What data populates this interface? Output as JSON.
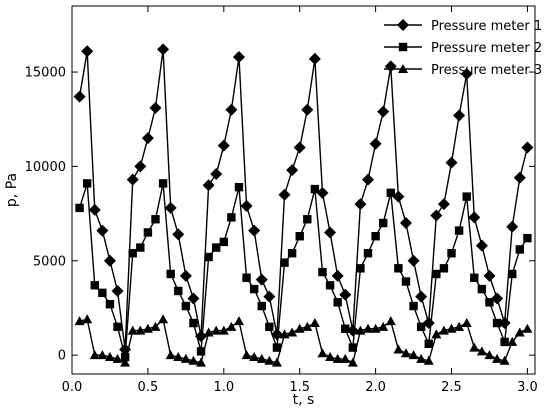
{
  "chart_data": {
    "type": "line",
    "xlabel": "t, s",
    "ylabel": "p, Pa",
    "xlim": [
      0.0,
      3.05
    ],
    "ylim": [
      -1000,
      18500
    ],
    "xticks": [
      0.0,
      0.5,
      1.0,
      1.5,
      2.0,
      2.5,
      3.0
    ],
    "xtick_labels": [
      "0.0",
      "0.5",
      "1.0",
      "1.5",
      "2.0",
      "2.5",
      "3.0"
    ],
    "yticks": [
      0,
      5000,
      10000,
      15000
    ],
    "ytick_labels": [
      "0",
      "5000",
      "10000",
      "15000"
    ],
    "grid": false,
    "legend_position": "top-right",
    "series": [
      {
        "name": "Pressure meter 1",
        "marker": "diamond",
        "color": "#000000",
        "x": [
          0.05,
          0.1,
          0.15,
          0.2,
          0.25,
          0.3,
          0.35,
          0.4,
          0.45,
          0.5,
          0.55,
          0.6,
          0.65,
          0.7,
          0.75,
          0.8,
          0.85,
          0.9,
          0.95,
          1.0,
          1.05,
          1.1,
          1.15,
          1.2,
          1.25,
          1.3,
          1.35,
          1.4,
          1.45,
          1.5,
          1.55,
          1.6,
          1.65,
          1.7,
          1.75,
          1.8,
          1.85,
          1.9,
          1.95,
          2.0,
          2.05,
          2.1,
          2.15,
          2.2,
          2.25,
          2.3,
          2.35,
          2.4,
          2.45,
          2.5,
          2.55,
          2.6,
          2.65,
          2.7,
          2.75,
          2.8,
          2.85,
          2.9,
          2.95,
          3.0
        ],
        "y": [
          13700,
          16100,
          7700,
          6600,
          5000,
          3400,
          300,
          9300,
          10000,
          11500,
          13100,
          16200,
          7800,
          6400,
          4200,
          3000,
          1000,
          9000,
          9600,
          11100,
          13000,
          15800,
          7900,
          6600,
          4000,
          3100,
          1100,
          8500,
          9800,
          11000,
          13000,
          15700,
          8600,
          6500,
          4200,
          3200,
          1300,
          8000,
          9300,
          11200,
          12900,
          15300,
          8400,
          7000,
          5000,
          3100,
          1700,
          7400,
          8000,
          10200,
          12700,
          14900,
          7300,
          5800,
          4200,
          3000,
          1700,
          6800,
          9400,
          11000
        ]
      },
      {
        "name": "Pressure meter 2",
        "marker": "square",
        "color": "#000000",
        "x": [
          0.05,
          0.1,
          0.15,
          0.2,
          0.25,
          0.3,
          0.35,
          0.4,
          0.45,
          0.5,
          0.55,
          0.6,
          0.65,
          0.7,
          0.75,
          0.8,
          0.85,
          0.9,
          0.95,
          1.0,
          1.05,
          1.1,
          1.15,
          1.2,
          1.25,
          1.3,
          1.35,
          1.4,
          1.45,
          1.5,
          1.55,
          1.6,
          1.65,
          1.7,
          1.75,
          1.8,
          1.85,
          1.9,
          1.95,
          2.0,
          2.05,
          2.1,
          2.15,
          2.2,
          2.25,
          2.3,
          2.35,
          2.4,
          2.45,
          2.5,
          2.55,
          2.6,
          2.65,
          2.7,
          2.75,
          2.8,
          2.85,
          2.9,
          2.95,
          3.0
        ],
        "y": [
          7800,
          9100,
          3700,
          3300,
          2700,
          1500,
          -100,
          5400,
          5700,
          6500,
          7200,
          9100,
          4300,
          3400,
          2600,
          1700,
          200,
          5200,
          5700,
          6000,
          7300,
          8900,
          4100,
          3500,
          2600,
          1500,
          400,
          4900,
          5400,
          6300,
          7200,
          8800,
          4400,
          3700,
          2800,
          1400,
          400,
          4600,
          5400,
          6300,
          7000,
          8600,
          4600,
          3900,
          2600,
          1500,
          600,
          4300,
          4600,
          5400,
          6600,
          8400,
          4100,
          3500,
          2800,
          1700,
          700,
          4300,
          5600,
          6200
        ]
      },
      {
        "name": "Pressure meter 3",
        "marker": "triangle-up",
        "color": "#000000",
        "x": [
          0.05,
          0.1,
          0.15,
          0.2,
          0.25,
          0.3,
          0.35,
          0.4,
          0.45,
          0.5,
          0.55,
          0.6,
          0.65,
          0.7,
          0.75,
          0.8,
          0.85,
          0.9,
          0.95,
          1.0,
          1.05,
          1.1,
          1.15,
          1.2,
          1.25,
          1.3,
          1.35,
          1.4,
          1.45,
          1.5,
          1.55,
          1.6,
          1.65,
          1.7,
          1.75,
          1.8,
          1.85,
          1.9,
          1.95,
          2.0,
          2.05,
          2.1,
          2.15,
          2.2,
          2.25,
          2.3,
          2.35,
          2.4,
          2.45,
          2.5,
          2.55,
          2.6,
          2.65,
          2.7,
          2.75,
          2.8,
          2.85,
          2.9,
          2.95,
          3.0
        ],
        "y": [
          1800,
          1900,
          0,
          0,
          -100,
          -200,
          -400,
          1300,
          1300,
          1400,
          1500,
          1900,
          0,
          -100,
          -200,
          -300,
          -400,
          1200,
          1300,
          1300,
          1500,
          1800,
          0,
          -100,
          -200,
          -300,
          -400,
          1100,
          1200,
          1400,
          1500,
          1700,
          100,
          -100,
          -200,
          -200,
          -400,
          1300,
          1400,
          1400,
          1500,
          1800,
          300,
          100,
          0,
          -200,
          -300,
          1100,
          1300,
          1400,
          1500,
          1700,
          400,
          200,
          0,
          -200,
          -300,
          700,
          1200,
          1400
        ]
      }
    ]
  }
}
